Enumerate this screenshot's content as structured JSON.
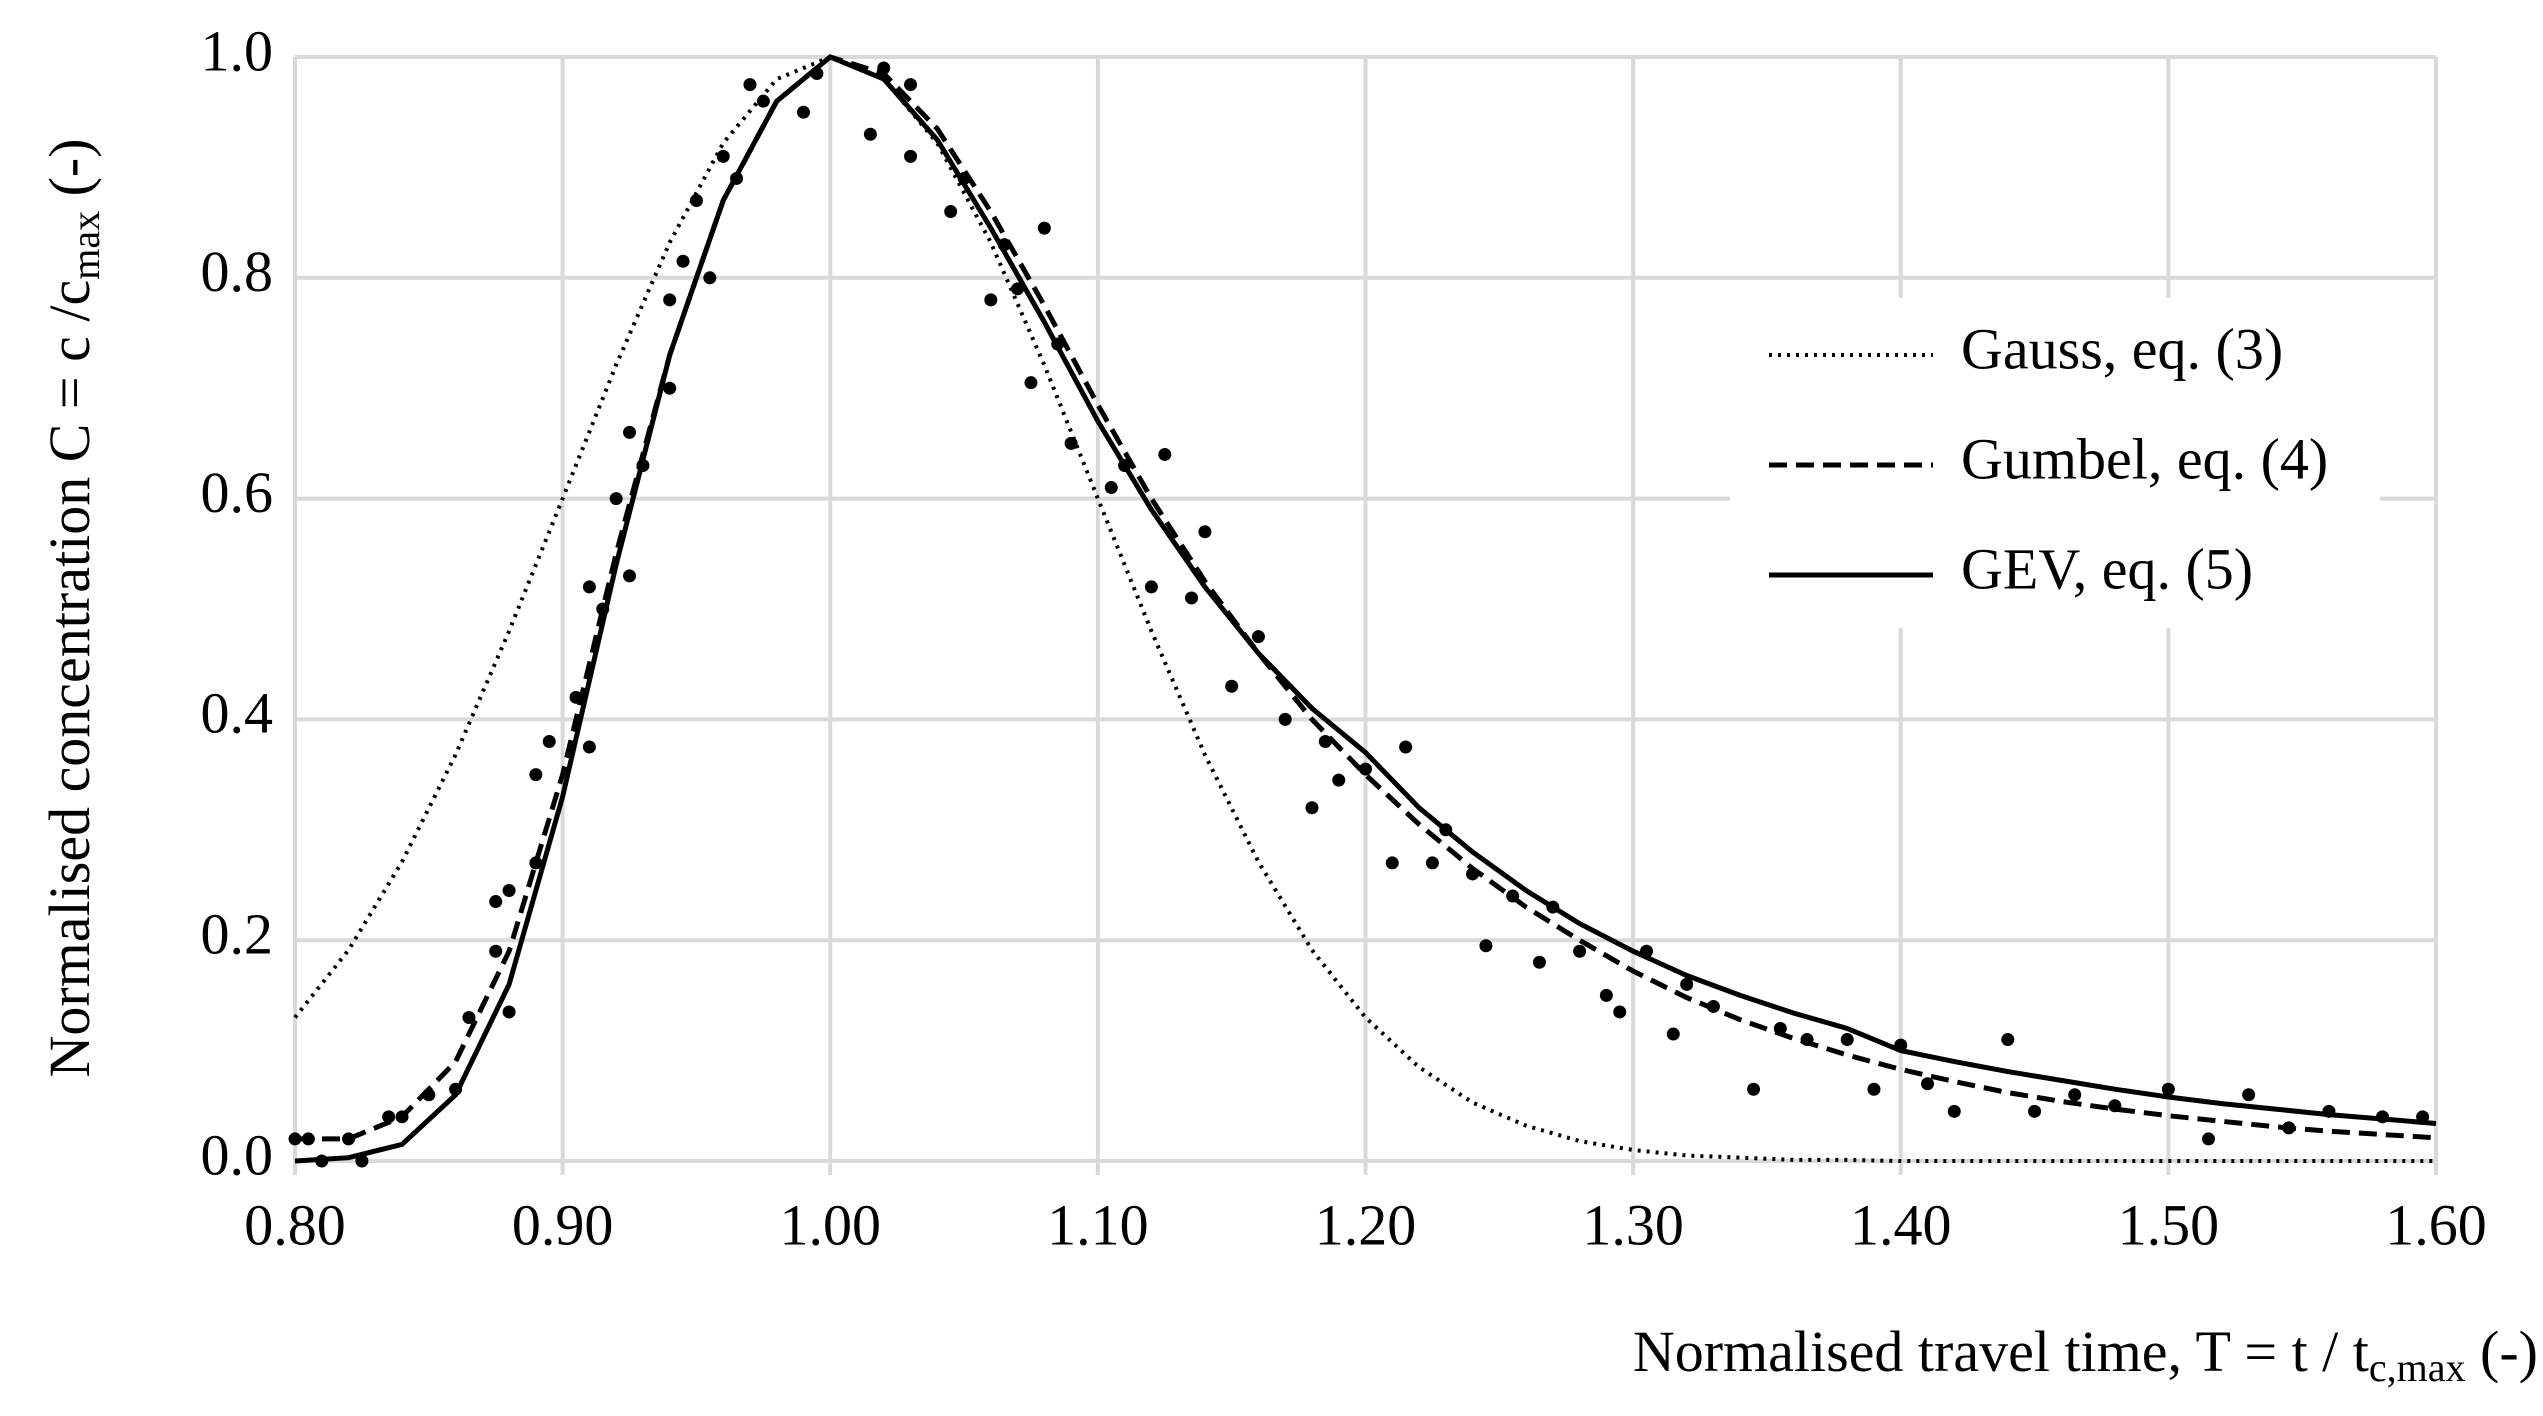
{
  "chart_data": {
    "type": "line",
    "xlabel": {
      "text": "Normalised travel time, T = t / t",
      "sub": "c,max",
      "tail": " (-)"
    },
    "ylabel": {
      "text": "Normalised concentration C = c /c",
      "sub": "max",
      "tail": " (-)"
    },
    "xlim": [
      0.8,
      1.6
    ],
    "xticks": [
      {
        "value": 0.8,
        "label": "0.80"
      },
      {
        "value": 0.9,
        "label": "0.90"
      },
      {
        "value": 1.0,
        "label": "1.00"
      },
      {
        "value": 1.1,
        "label": "1.10"
      },
      {
        "value": 1.2,
        "label": "1.20"
      },
      {
        "value": 1.3,
        "label": "1.30"
      },
      {
        "value": 1.4,
        "label": "1.40"
      },
      {
        "value": 1.5,
        "label": "1.50"
      },
      {
        "value": 1.6,
        "label": "1.60"
      }
    ],
    "ylim": [
      0,
      1
    ],
    "yticks": [
      {
        "value": 0,
        "label": "0.0"
      },
      0.2,
      0.4,
      0.6,
      0.8,
      {
        "value": 1,
        "label": "1.0"
      }
    ],
    "grid": true,
    "legend": "upper right",
    "x": [
      0.8,
      0.82,
      0.84,
      0.86,
      0.88,
      0.9,
      0.92,
      0.94,
      0.96,
      0.98,
      1.0,
      1.02,
      1.04,
      1.06,
      1.08,
      1.1,
      1.12,
      1.14,
      1.16,
      1.18,
      1.2,
      1.22,
      1.24,
      1.26,
      1.28,
      1.3,
      1.32,
      1.34,
      1.36,
      1.38,
      1.4,
      1.42,
      1.44,
      1.46,
      1.48,
      1.5,
      1.52,
      1.54,
      1.56,
      1.58,
      1.6
    ],
    "series": [
      {
        "name": "Gauss, eq. (3)",
        "color": "#000000",
        "dash": "dotted",
        "values": [
          0.13,
          0.191,
          0.271,
          0.368,
          0.48,
          0.6,
          0.721,
          0.832,
          0.922,
          0.98,
          1,
          0.98,
          0.922,
          0.832,
          0.721,
          0.6,
          0.48,
          0.368,
          0.271,
          0.191,
          0.13,
          0.085,
          0.053,
          0.032,
          0.018,
          0.01,
          0.005,
          0.003,
          0.001,
          0.001,
          0,
          0,
          0,
          0,
          0,
          0,
          0,
          0,
          0,
          0,
          0
        ]
      },
      {
        "name": "Gumbel, eq. (4)",
        "color": "#000000",
        "dash": "dashed",
        "values": [
          0.02,
          0.02,
          0.04,
          0.09,
          0.19,
          0.35,
          0.55,
          0.73,
          0.87,
          0.96,
          1.0,
          0.985,
          0.935,
          0.86,
          0.775,
          0.685,
          0.6,
          0.525,
          0.46,
          0.4,
          0.35,
          0.305,
          0.265,
          0.23,
          0.2,
          0.172,
          0.148,
          0.128,
          0.111,
          0.096,
          0.083,
          0.072,
          0.062,
          0.054,
          0.047,
          0.041,
          0.036,
          0.031,
          0.027,
          0.024,
          0.021
        ]
      },
      {
        "name": "GEV, eq. (5)",
        "color": "#000000",
        "dash": "solid",
        "values": [
          0,
          0.003,
          0.015,
          0.06,
          0.16,
          0.33,
          0.54,
          0.73,
          0.87,
          0.96,
          1.0,
          0.98,
          0.925,
          0.845,
          0.76,
          0.67,
          0.59,
          0.52,
          0.46,
          0.41,
          0.37,
          0.32,
          0.28,
          0.245,
          0.215,
          0.19,
          0.168,
          0.15,
          0.134,
          0.12,
          0.1,
          0.09,
          0.081,
          0.073,
          0.065,
          0.058,
          0.052,
          0.047,
          0.042,
          0.038,
          0.034
        ]
      }
    ],
    "points": {
      "color": "#000000",
      "x": [
        0.8,
        0.805,
        0.81,
        0.82,
        0.825,
        0.835,
        0.84,
        0.85,
        0.86,
        0.865,
        0.875,
        0.875,
        0.88,
        0.88,
        0.89,
        0.89,
        0.895,
        0.905,
        0.91,
        0.91,
        0.915,
        0.92,
        0.925,
        0.925,
        0.93,
        0.94,
        0.94,
        0.945,
        0.95,
        0.955,
        0.96,
        0.965,
        0.97,
        0.975,
        0.99,
        0.995,
        1.015,
        1.02,
        1.03,
        1.03,
        1.045,
        1.05,
        1.06,
        1.065,
        1.07,
        1.075,
        1.08,
        1.085,
        1.09,
        1.105,
        1.11,
        1.12,
        1.125,
        1.135,
        1.14,
        1.15,
        1.16,
        1.17,
        1.18,
        1.185,
        1.19,
        1.2,
        1.21,
        1.215,
        1.225,
        1.23,
        1.24,
        1.245,
        1.255,
        1.265,
        1.27,
        1.28,
        1.29,
        1.295,
        1.305,
        1.315,
        1.32,
        1.33,
        1.345,
        1.355,
        1.365,
        1.38,
        1.39,
        1.4,
        1.41,
        1.42,
        1.44,
        1.45,
        1.465,
        1.48,
        1.5,
        1.515,
        1.53,
        1.545,
        1.56,
        1.58,
        1.595
      ],
      "y": [
        0.02,
        0.02,
        0.0,
        0.02,
        0.0,
        0.04,
        0.04,
        0.06,
        0.065,
        0.13,
        0.19,
        0.235,
        0.135,
        0.245,
        0.27,
        0.35,
        0.38,
        0.42,
        0.375,
        0.52,
        0.5,
        0.6,
        0.53,
        0.66,
        0.63,
        0.7,
        0.78,
        0.815,
        0.87,
        0.8,
        0.91,
        0.89,
        0.975,
        0.96,
        0.95,
        0.985,
        0.93,
        0.99,
        0.975,
        0.91,
        0.86,
        0.89,
        0.78,
        0.83,
        0.79,
        0.705,
        0.845,
        0.74,
        0.65,
        0.61,
        0.63,
        0.52,
        0.64,
        0.51,
        0.57,
        0.43,
        0.475,
        0.4,
        0.32,
        0.38,
        0.345,
        0.355,
        0.27,
        0.375,
        0.27,
        0.3,
        0.26,
        0.195,
        0.24,
        0.18,
        0.23,
        0.19,
        0.15,
        0.135,
        0.19,
        0.115,
        0.16,
        0.14,
        0.065,
        0.12,
        0.11,
        0.11,
        0.065,
        0.105,
        0.07,
        0.045,
        0.11,
        0.045,
        0.06,
        0.05,
        0.065,
        0.02,
        0.06,
        0.03,
        0.045,
        0.04,
        0.04
      ]
    }
  }
}
